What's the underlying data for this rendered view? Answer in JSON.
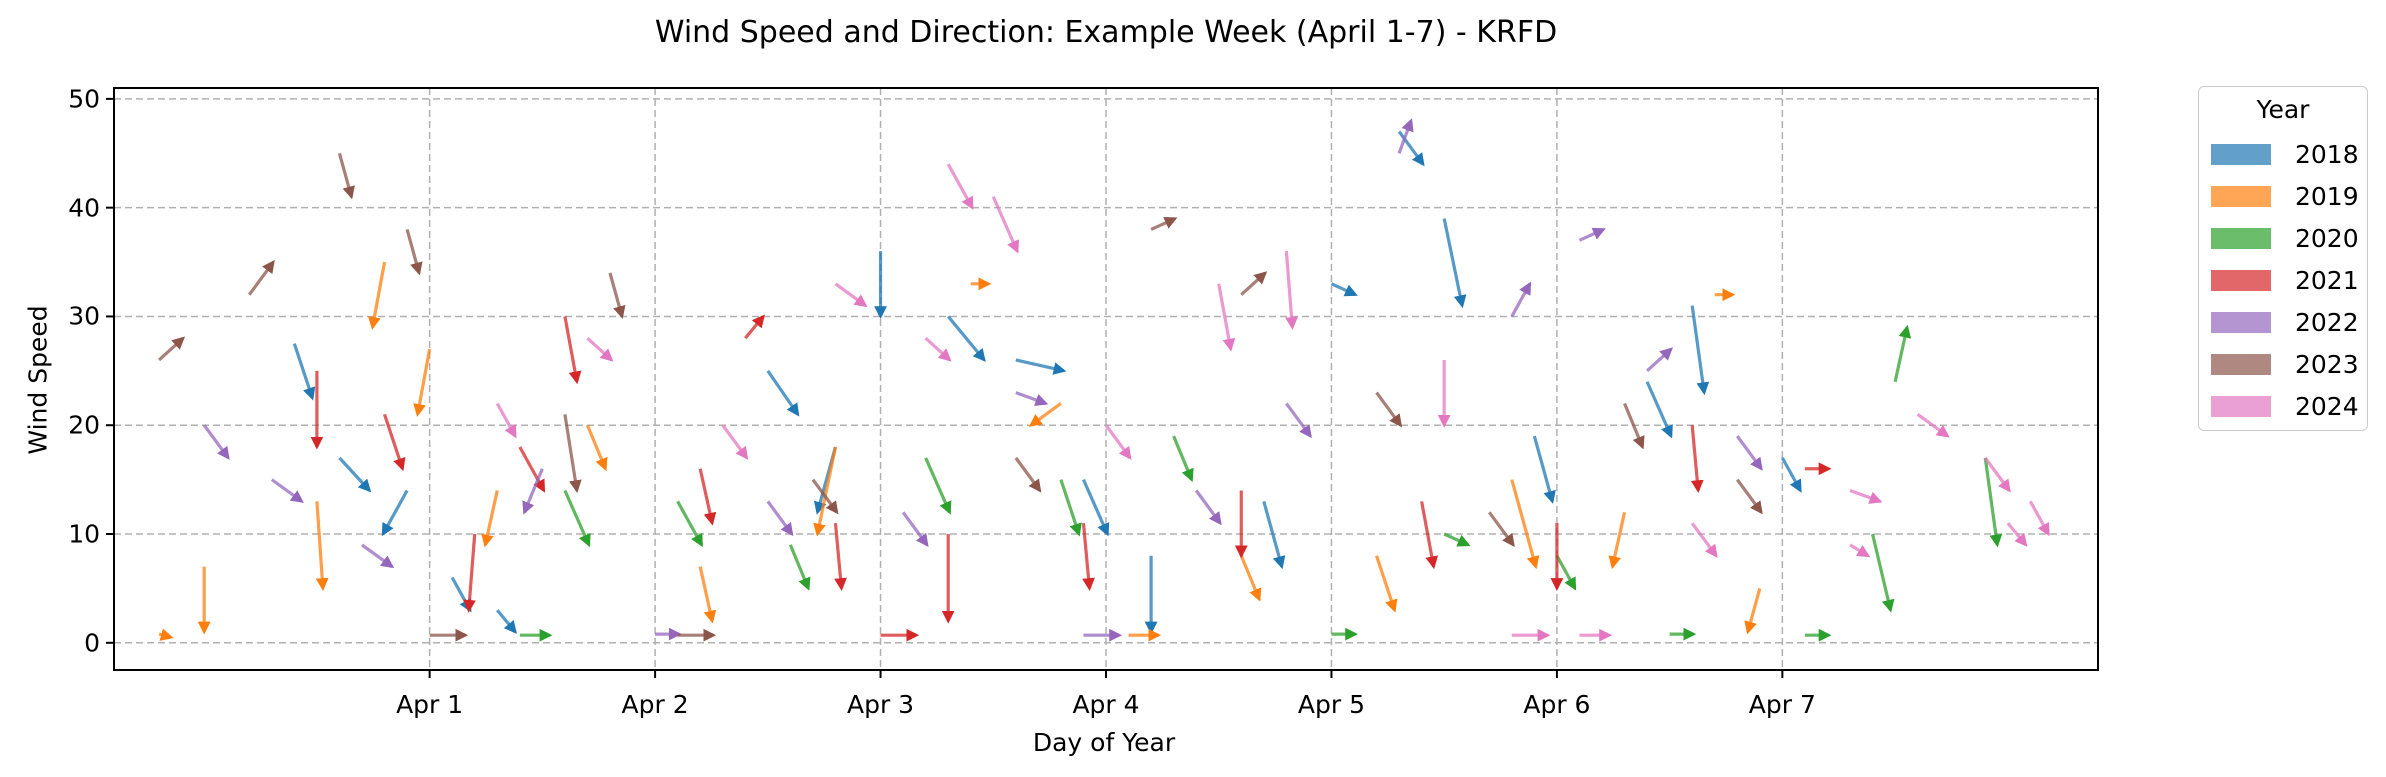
{
  "title": "Wind Speed and Direction: Example Week (April 1-7) - KRFD",
  "chart_data": {
    "type": "quiver",
    "title": "Wind Speed and Direction: Example Week (April 1-7) - KRFD",
    "xlabel": "Day of Year",
    "ylabel": "Wind Speed",
    "xlim": [
      90.6,
      99.4
    ],
    "ylim": [
      -2.5,
      51
    ],
    "x_ticks": [
      92,
      93,
      94,
      95,
      96,
      97,
      98
    ],
    "x_tick_labels": [
      "Apr 1",
      "Apr 2",
      "Apr 3",
      "Apr 4",
      "Apr 5",
      "Apr 6",
      "Apr 7"
    ],
    "y_ticks": [
      0,
      10,
      20,
      30,
      40,
      50
    ],
    "grid": true,
    "legend": {
      "title": "Year",
      "placement": "outside-right"
    },
    "series": [
      {
        "name": "2018",
        "color": "#1f77b4",
        "points": [
          {
            "x": 91.4,
            "y": 27.5,
            "u": 0.3,
            "v": -5
          },
          {
            "x": 91.6,
            "y": 17,
            "u": 0.5,
            "v": -3
          },
          {
            "x": 91.9,
            "y": 14,
            "u": -0.4,
            "v": -4
          },
          {
            "x": 92.1,
            "y": 6,
            "u": 0.3,
            "v": -3
          },
          {
            "x": 92.3,
            "y": 3,
            "u": 0.3,
            "v": -2
          },
          {
            "x": 93.5,
            "y": 25,
            "u": 0.5,
            "v": -4
          },
          {
            "x": 93.8,
            "y": 18,
            "u": -0.3,
            "v": -6
          },
          {
            "x": 94.0,
            "y": 36,
            "u": 0,
            "v": -6
          },
          {
            "x": 94.3,
            "y": 30,
            "u": 0.6,
            "v": -4
          },
          {
            "x": 94.6,
            "y": 26,
            "u": 0.8,
            "v": -1
          },
          {
            "x": 94.9,
            "y": 15,
            "u": 0.4,
            "v": -5
          },
          {
            "x": 95.2,
            "y": 8,
            "u": 0,
            "v": -7
          },
          {
            "x": 95.7,
            "y": 13,
            "u": 0.3,
            "v": -6
          },
          {
            "x": 96.0,
            "y": 33,
            "u": 0.4,
            "v": -1
          },
          {
            "x": 96.3,
            "y": 47,
            "u": 0.4,
            "v": -3
          },
          {
            "x": 96.5,
            "y": 39,
            "u": 0.3,
            "v": -8
          },
          {
            "x": 96.9,
            "y": 19,
            "u": 0.3,
            "v": -6
          },
          {
            "x": 97.4,
            "y": 24,
            "u": 0.4,
            "v": -5
          },
          {
            "x": 97.6,
            "y": 31,
            "u": 0.2,
            "v": -8
          },
          {
            "x": 98.0,
            "y": 17,
            "u": 0.3,
            "v": -3
          }
        ]
      },
      {
        "name": "2019",
        "color": "#ff7f0e",
        "points": [
          {
            "x": 90.8,
            "y": 0.8,
            "u": 0.2,
            "v": -0.3
          },
          {
            "x": 91.0,
            "y": 7,
            "u": 0,
            "v": -6
          },
          {
            "x": 91.5,
            "y": 13,
            "u": 0.1,
            "v": -8
          },
          {
            "x": 91.8,
            "y": 35,
            "u": -0.2,
            "v": -6
          },
          {
            "x": 92.0,
            "y": 27,
            "u": -0.2,
            "v": -6
          },
          {
            "x": 92.3,
            "y": 14,
            "u": -0.2,
            "v": -5
          },
          {
            "x": 92.7,
            "y": 20,
            "u": 0.3,
            "v": -4
          },
          {
            "x": 93.2,
            "y": 7,
            "u": 0.2,
            "v": -5
          },
          {
            "x": 93.8,
            "y": 18,
            "u": -0.3,
            "v": -8
          },
          {
            "x": 94.4,
            "y": 33,
            "u": 0.3,
            "v": 0
          },
          {
            "x": 94.8,
            "y": 22,
            "u": -0.5,
            "v": -2
          },
          {
            "x": 95.1,
            "y": 0.7,
            "u": 0.5,
            "v": 0
          },
          {
            "x": 95.6,
            "y": 8,
            "u": 0.3,
            "v": -4
          },
          {
            "x": 96.2,
            "y": 8,
            "u": 0.3,
            "v": -5
          },
          {
            "x": 96.8,
            "y": 15,
            "u": 0.4,
            "v": -8
          },
          {
            "x": 97.3,
            "y": 12,
            "u": -0.2,
            "v": -5
          },
          {
            "x": 97.7,
            "y": 32,
            "u": 0.3,
            "v": 0
          },
          {
            "x": 97.9,
            "y": 5,
            "u": -0.2,
            "v": -4
          }
        ]
      },
      {
        "name": "2020",
        "color": "#2ca02c",
        "points": [
          {
            "x": 92.4,
            "y": 0.7,
            "u": 0.5,
            "v": 0
          },
          {
            "x": 92.6,
            "y": 14,
            "u": 0.4,
            "v": -5
          },
          {
            "x": 93.1,
            "y": 13,
            "u": 0.4,
            "v": -4
          },
          {
            "x": 93.6,
            "y": 9,
            "u": 0.3,
            "v": -4
          },
          {
            "x": 94.2,
            "y": 17,
            "u": 0.4,
            "v": -5
          },
          {
            "x": 94.8,
            "y": 15,
            "u": 0.3,
            "v": -5
          },
          {
            "x": 95.3,
            "y": 19,
            "u": 0.3,
            "v": -4
          },
          {
            "x": 96.0,
            "y": 0.8,
            "u": 0.4,
            "v": 0
          },
          {
            "x": 96.5,
            "y": 10,
            "u": 0.4,
            "v": -1
          },
          {
            "x": 97.0,
            "y": 8,
            "u": 0.3,
            "v": -3
          },
          {
            "x": 97.5,
            "y": 0.8,
            "u": 0.4,
            "v": 0
          },
          {
            "x": 98.1,
            "y": 0.7,
            "u": 0.4,
            "v": 0
          },
          {
            "x": 98.4,
            "y": 10,
            "u": 0.3,
            "v": -7
          },
          {
            "x": 98.5,
            "y": 24,
            "u": 0.2,
            "v": 5
          },
          {
            "x": 98.9,
            "y": 17,
            "u": 0.2,
            "v": -8
          }
        ]
      },
      {
        "name": "2021",
        "color": "#d62728",
        "points": [
          {
            "x": 91.5,
            "y": 25,
            "u": 0,
            "v": -7
          },
          {
            "x": 91.8,
            "y": 21,
            "u": 0.3,
            "v": -5
          },
          {
            "x": 92.2,
            "y": 10,
            "u": -0.1,
            "v": -7
          },
          {
            "x": 92.4,
            "y": 18,
            "u": 0.4,
            "v": -4
          },
          {
            "x": 92.6,
            "y": 30,
            "u": 0.2,
            "v": -6
          },
          {
            "x": 93.2,
            "y": 16,
            "u": 0.2,
            "v": -5
          },
          {
            "x": 93.4,
            "y": 28,
            "u": 0.3,
            "v": 2
          },
          {
            "x": 93.8,
            "y": 11,
            "u": 0.1,
            "v": -6
          },
          {
            "x": 94.0,
            "y": 0.7,
            "u": 0.6,
            "v": 0
          },
          {
            "x": 94.3,
            "y": 10,
            "u": 0,
            "v": -8
          },
          {
            "x": 94.9,
            "y": 11,
            "u": 0.1,
            "v": -6
          },
          {
            "x": 95.6,
            "y": 14,
            "u": 0,
            "v": -6
          },
          {
            "x": 96.4,
            "y": 13,
            "u": 0.2,
            "v": -6
          },
          {
            "x": 97.0,
            "y": 11,
            "u": 0,
            "v": -6
          },
          {
            "x": 97.6,
            "y": 20,
            "u": 0.1,
            "v": -6
          },
          {
            "x": 98.1,
            "y": 16,
            "u": 0.4,
            "v": 0
          }
        ]
      },
      {
        "name": "2022",
        "color": "#9467bd",
        "points": [
          {
            "x": 91.0,
            "y": 20,
            "u": 0.4,
            "v": -3
          },
          {
            "x": 91.3,
            "y": 15,
            "u": 0.5,
            "v": -2
          },
          {
            "x": 91.7,
            "y": 9,
            "u": 0.5,
            "v": -2
          },
          {
            "x": 92.5,
            "y": 16,
            "u": -0.3,
            "v": -4
          },
          {
            "x": 93.0,
            "y": 0.8,
            "u": 0.4,
            "v": 0
          },
          {
            "x": 93.5,
            "y": 13,
            "u": 0.4,
            "v": -3
          },
          {
            "x": 94.1,
            "y": 12,
            "u": 0.4,
            "v": -3
          },
          {
            "x": 94.6,
            "y": 23,
            "u": 0.5,
            "v": -1
          },
          {
            "x": 94.9,
            "y": 0.7,
            "u": 0.6,
            "v": 0
          },
          {
            "x": 95.4,
            "y": 14,
            "u": 0.4,
            "v": -3
          },
          {
            "x": 95.8,
            "y": 22,
            "u": 0.4,
            "v": -3
          },
          {
            "x": 96.3,
            "y": 45,
            "u": 0.2,
            "v": 3
          },
          {
            "x": 96.8,
            "y": 30,
            "u": 0.3,
            "v": 3
          },
          {
            "x": 97.1,
            "y": 37,
            "u": 0.4,
            "v": 1
          },
          {
            "x": 97.4,
            "y": 25,
            "u": 0.4,
            "v": 2
          },
          {
            "x": 97.8,
            "y": 19,
            "u": 0.4,
            "v": -3
          }
        ]
      },
      {
        "name": "2023",
        "color": "#8c564b",
        "points": [
          {
            "x": 90.8,
            "y": 26,
            "u": 0.4,
            "v": 2
          },
          {
            "x": 91.2,
            "y": 32,
            "u": 0.4,
            "v": 3
          },
          {
            "x": 91.6,
            "y": 45,
            "u": 0.2,
            "v": -4
          },
          {
            "x": 91.9,
            "y": 38,
            "u": 0.2,
            "v": -4
          },
          {
            "x": 92.0,
            "y": 0.7,
            "u": 0.6,
            "v": 0
          },
          {
            "x": 92.6,
            "y": 21,
            "u": 0.2,
            "v": -7
          },
          {
            "x": 92.8,
            "y": 34,
            "u": 0.2,
            "v": -4
          },
          {
            "x": 93.1,
            "y": 0.7,
            "u": 0.6,
            "v": 0
          },
          {
            "x": 93.7,
            "y": 15,
            "u": 0.4,
            "v": -3
          },
          {
            "x": 94.6,
            "y": 17,
            "u": 0.4,
            "v": -3
          },
          {
            "x": 95.2,
            "y": 38,
            "u": 0.4,
            "v": 1
          },
          {
            "x": 95.6,
            "y": 32,
            "u": 0.4,
            "v": 2
          },
          {
            "x": 96.2,
            "y": 23,
            "u": 0.4,
            "v": -3
          },
          {
            "x": 96.7,
            "y": 12,
            "u": 0.4,
            "v": -3
          },
          {
            "x": 97.3,
            "y": 22,
            "u": 0.3,
            "v": -4
          },
          {
            "x": 97.8,
            "y": 15,
            "u": 0.4,
            "v": -3
          }
        ]
      },
      {
        "name": "2024",
        "color": "#e377c2",
        "points": [
          {
            "x": 92.3,
            "y": 22,
            "u": 0.3,
            "v": -3
          },
          {
            "x": 92.7,
            "y": 28,
            "u": 0.4,
            "v": -2
          },
          {
            "x": 93.3,
            "y": 20,
            "u": 0.4,
            "v": -3
          },
          {
            "x": 93.8,
            "y": 33,
            "u": 0.5,
            "v": -2
          },
          {
            "x": 94.2,
            "y": 28,
            "u": 0.4,
            "v": -2
          },
          {
            "x": 94.3,
            "y": 44,
            "u": 0.4,
            "v": -4
          },
          {
            "x": 94.5,
            "y": 41,
            "u": 0.4,
            "v": -5
          },
          {
            "x": 95.0,
            "y": 20,
            "u": 0.4,
            "v": -3
          },
          {
            "x": 95.5,
            "y": 33,
            "u": 0.2,
            "v": -6
          },
          {
            "x": 95.8,
            "y": 36,
            "u": 0.1,
            "v": -7
          },
          {
            "x": 96.5,
            "y": 26,
            "u": 0,
            "v": -6
          },
          {
            "x": 96.8,
            "y": 0.7,
            "u": 0.6,
            "v": 0
          },
          {
            "x": 97.1,
            "y": 0.7,
            "u": 0.5,
            "v": 0
          },
          {
            "x": 97.6,
            "y": 11,
            "u": 0.4,
            "v": -3
          },
          {
            "x": 98.3,
            "y": 14,
            "u": 0.5,
            "v": -1
          },
          {
            "x": 98.6,
            "y": 21,
            "u": 0.5,
            "v": -2
          },
          {
            "x": 98.9,
            "y": 17,
            "u": 0.4,
            "v": -3
          },
          {
            "x": 99.1,
            "y": 13,
            "u": 0.3,
            "v": -3
          },
          {
            "x": 99.0,
            "y": 11,
            "u": 0.3,
            "v": -2
          },
          {
            "x": 98.3,
            "y": 9,
            "u": 0.3,
            "v": -1
          }
        ]
      }
    ]
  }
}
